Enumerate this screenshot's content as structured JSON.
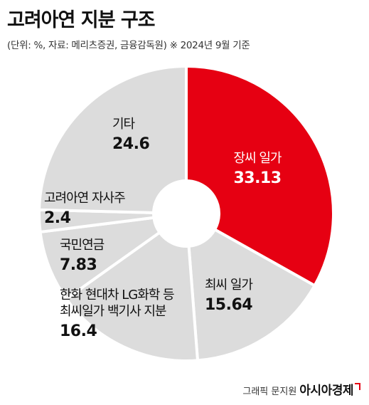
{
  "header": {
    "title": "고려아연 지분 구조",
    "subtitle": "(단위: %, 자료: 메리츠증권, 금융감독원)  ※ 2024년 9월 기준"
  },
  "chart_data": {
    "type": "pie",
    "donut": true,
    "title": "고려아연 지분 구조",
    "unit": "%",
    "slices": [
      {
        "label": "장씨 일가",
        "label_lines": [
          "장씨 일가"
        ],
        "value": 33.13,
        "value_text": "33.13",
        "color": "#e60012",
        "text_color": "#ffffff"
      },
      {
        "label": "최씨 일가",
        "label_lines": [
          "최씨 일가"
        ],
        "value": 15.64,
        "value_text": "15.64",
        "color": "#dcdcdc",
        "text_color": "#111111"
      },
      {
        "label": "한화 현대차 LG화학 등 최씨일가 백기사 지분",
        "label_lines": [
          "한화 현대차 LG화학 등",
          "최씨일가 백기사 지분"
        ],
        "value": 16.4,
        "value_text": "16.4",
        "color": "#dcdcdc",
        "text_color": "#111111"
      },
      {
        "label": "국민연금",
        "label_lines": [
          "국민연금"
        ],
        "value": 7.83,
        "value_text": "7.83",
        "color": "#dcdcdc",
        "text_color": "#111111"
      },
      {
        "label": "고려아연 자사주",
        "label_lines": [
          "고려아연 자사주"
        ],
        "value": 2.4,
        "value_text": "2.4",
        "color": "#dcdcdc",
        "text_color": "#111111"
      },
      {
        "label": "기타",
        "label_lines": [
          "기타"
        ],
        "value": 24.6,
        "value_text": "24.6",
        "color": "#dcdcdc",
        "text_color": "#111111"
      }
    ],
    "separator_color": "#ffffff"
  },
  "footer": {
    "credit": "그래픽 문지원",
    "brand": "아시아경제"
  }
}
